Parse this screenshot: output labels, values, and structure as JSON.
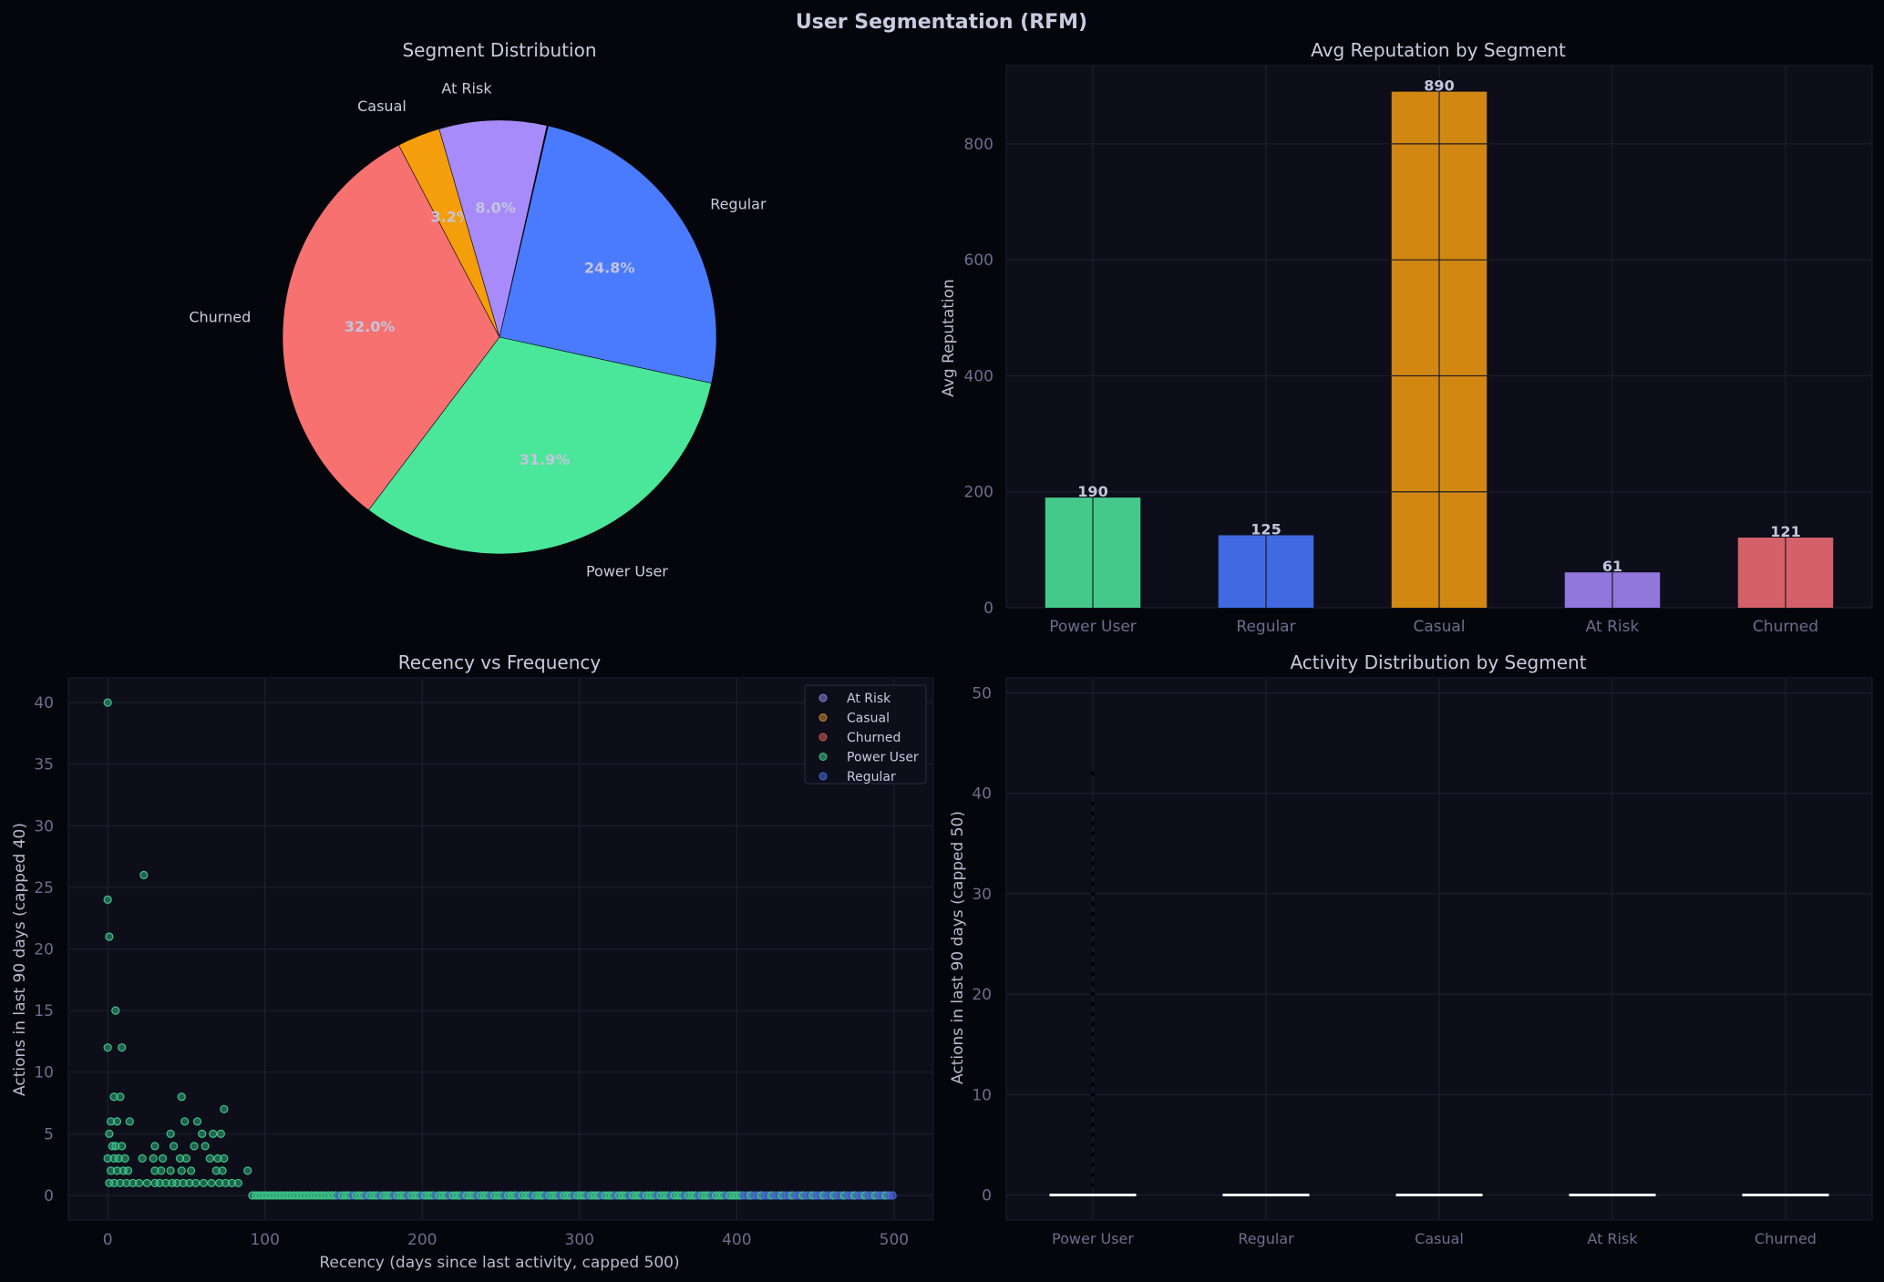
{
  "title": "User Segmentation (RFM)",
  "chart_data": [
    {
      "type": "pie",
      "title": "Segment Distribution",
      "slices": [
        {
          "label": "Regular",
          "pct": 24.8,
          "pct_label": "24.8%",
          "color": "#4a7bff"
        },
        {
          "label": "Power User",
          "pct": 31.9,
          "pct_label": "31.9%",
          "color": "#4ae699"
        },
        {
          "label": "Churned",
          "pct": 32.0,
          "pct_label": "32.0%",
          "color": "#f87171"
        },
        {
          "label": "Casual",
          "pct": 3.2,
          "pct_label": "3.2%",
          "color": "#f59e0b"
        },
        {
          "label": "At Risk",
          "pct": 8.0,
          "pct_label": "8.0%",
          "color": "#a78bfa"
        }
      ]
    },
    {
      "type": "bar",
      "title": "Avg Reputation by Segment",
      "categories": [
        "Power User",
        "Regular",
        "Casual",
        "At Risk",
        "Churned"
      ],
      "values": [
        190,
        125,
        890,
        61,
        121
      ],
      "value_labels": [
        "190",
        "125",
        "890",
        "61",
        "121"
      ],
      "colors": [
        "#44c98a",
        "#4169e1",
        "#d18712",
        "#9176dc",
        "#d4606a"
      ],
      "ylabel": "Avg Reputation",
      "ylim": [
        0,
        935
      ],
      "yticks": [
        0,
        200,
        400,
        600,
        800
      ],
      "grid": true
    },
    {
      "type": "scatter",
      "title": "Recency vs Frequency",
      "xlabel": "Recency (days since last activity, capped 500)",
      "ylabel": "Actions in last 90 days (capped 40)",
      "xlim": [
        -25,
        525
      ],
      "ylim": [
        -2,
        42
      ],
      "xticks": [
        0,
        100,
        200,
        300,
        400,
        500
      ],
      "yticks": [
        0,
        5,
        10,
        15,
        20,
        25,
        30,
        35,
        40
      ],
      "grid": true,
      "legend_position": "top-right",
      "series": [
        {
          "name": "At Risk",
          "color": "#8b7fd6"
        },
        {
          "name": "Casual",
          "color": "#c98a28"
        },
        {
          "name": "Churned",
          "color": "#d05a5a"
        },
        {
          "name": "Power User",
          "color": "#3cc68a",
          "points": [
            [
              0,
              40
            ],
            [
              23,
              26
            ],
            [
              0,
              24
            ],
            [
              1,
              21
            ],
            [
              5,
              15
            ],
            [
              0,
              12
            ],
            [
              9,
              12
            ],
            [
              47,
              8
            ],
            [
              4,
              8
            ],
            [
              8,
              8
            ],
            [
              74,
              7
            ],
            [
              2,
              6
            ],
            [
              6,
              6
            ],
            [
              14,
              6
            ],
            [
              49,
              6
            ],
            [
              57,
              6
            ],
            [
              60,
              5
            ],
            [
              1,
              5
            ],
            [
              40,
              5
            ],
            [
              67,
              5
            ],
            [
              72,
              5
            ],
            [
              3,
              4
            ],
            [
              5,
              4
            ],
            [
              9,
              4
            ],
            [
              30,
              4
            ],
            [
              42,
              4
            ],
            [
              55,
              4
            ],
            [
              62,
              4
            ],
            [
              0,
              3
            ],
            [
              4,
              3
            ],
            [
              7,
              3
            ],
            [
              11,
              3
            ],
            [
              22,
              3
            ],
            [
              29,
              3
            ],
            [
              35,
              3
            ],
            [
              46,
              3
            ],
            [
              50,
              3
            ],
            [
              65,
              3
            ],
            [
              70,
              3
            ],
            [
              74,
              3
            ],
            [
              2,
              2
            ],
            [
              6,
              2
            ],
            [
              10,
              2
            ],
            [
              13,
              2
            ],
            [
              30,
              2
            ],
            [
              34,
              2
            ],
            [
              40,
              2
            ],
            [
              47,
              2
            ],
            [
              53,
              2
            ],
            [
              69,
              2
            ],
            [
              73,
              2
            ],
            [
              89,
              2
            ],
            [
              1,
              1
            ],
            [
              4,
              1
            ],
            [
              8,
              1
            ],
            [
              12,
              1
            ],
            [
              16,
              1
            ],
            [
              20,
              1
            ],
            [
              25,
              1
            ],
            [
              30,
              1
            ],
            [
              33,
              1
            ],
            [
              37,
              1
            ],
            [
              41,
              1
            ],
            [
              44,
              1
            ],
            [
              48,
              1
            ],
            [
              52,
              1
            ],
            [
              56,
              1
            ],
            [
              61,
              1
            ],
            [
              66,
              1
            ],
            [
              71,
              1
            ],
            [
              75,
              1
            ],
            [
              79,
              1
            ],
            [
              83,
              1
            ]
          ]
        },
        {
          "name": "Regular",
          "color": "#4a66d8"
        }
      ],
      "zero_band": {
        "x_from": 92,
        "x_to": 500,
        "y": 0
      }
    },
    {
      "type": "box",
      "title": "Activity Distribution by Segment",
      "categories": [
        "Power User",
        "Regular",
        "Casual",
        "At Risk",
        "Churned"
      ],
      "ylabel": "Actions in last 90 days (capped 50)",
      "ylim": [
        -2.5,
        51.5
      ],
      "yticks": [
        0,
        10,
        20,
        30,
        40,
        50
      ],
      "grid": true,
      "medians": [
        0,
        0,
        0,
        0,
        0
      ],
      "outliers": [
        [
          1,
          2,
          3,
          4,
          5,
          6,
          7,
          8,
          9,
          10,
          11,
          12,
          13,
          14,
          15,
          16,
          17,
          18,
          19,
          20,
          21,
          22,
          23,
          24,
          25,
          26,
          27,
          28,
          29,
          30,
          31,
          32,
          33,
          34,
          35,
          36,
          37,
          38,
          39,
          42
        ],
        [],
        [],
        [],
        []
      ]
    }
  ]
}
